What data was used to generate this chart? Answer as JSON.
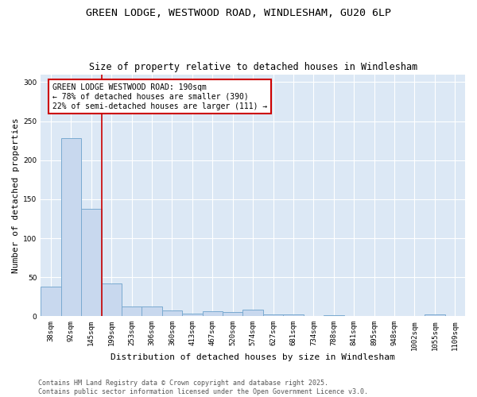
{
  "title_line1": "GREEN LODGE, WESTWOOD ROAD, WINDLESHAM, GU20 6LP",
  "title_line2": "Size of property relative to detached houses in Windlesham",
  "xlabel": "Distribution of detached houses by size in Windlesham",
  "ylabel": "Number of detached properties",
  "categories": [
    "38sqm",
    "92sqm",
    "145sqm",
    "199sqm",
    "253sqm",
    "306sqm",
    "360sqm",
    "413sqm",
    "467sqm",
    "520sqm",
    "574sqm",
    "627sqm",
    "681sqm",
    "734sqm",
    "788sqm",
    "841sqm",
    "895sqm",
    "948sqm",
    "1002sqm",
    "1055sqm",
    "1109sqm"
  ],
  "values": [
    38,
    228,
    138,
    42,
    13,
    13,
    7,
    3,
    6,
    5,
    8,
    2,
    2,
    0,
    1,
    0,
    0,
    0,
    0,
    2,
    0
  ],
  "bar_color": "#c8d8ee",
  "bar_edge_color": "#7aaad0",
  "bar_edge_width": 0.7,
  "red_line_color": "#cc0000",
  "annotation_text": "GREEN LODGE WESTWOOD ROAD: 190sqm\n← 78% of detached houses are smaller (390)\n22% of semi-detached houses are larger (111) →",
  "annotation_box_color": "#ffffff",
  "annotation_box_edge": "#cc0000",
  "ylim": [
    0,
    310
  ],
  "yticks": [
    0,
    50,
    100,
    150,
    200,
    250,
    300
  ],
  "footnote": "Contains HM Land Registry data © Crown copyright and database right 2025.\nContains public sector information licensed under the Open Government Licence v3.0.",
  "background_color": "#ffffff",
  "plot_bg_color": "#dce8f5",
  "grid_color": "#ffffff",
  "title_fontsize": 9.5,
  "subtitle_fontsize": 8.5,
  "axis_label_fontsize": 8,
  "tick_fontsize": 6.5,
  "annotation_fontsize": 7,
  "footnote_fontsize": 6
}
